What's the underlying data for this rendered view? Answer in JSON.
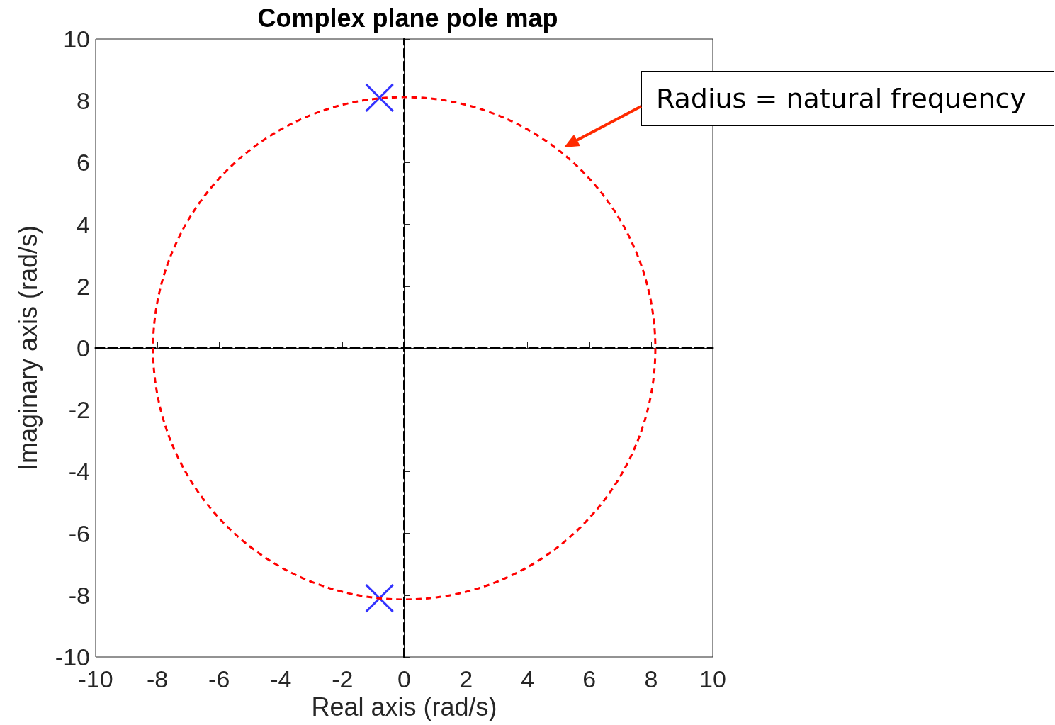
{
  "chart_data": {
    "type": "scatter",
    "title": "Complex plane pole map",
    "xlabel": "Real axis (rad/s)",
    "ylabel": "Imaginary axis (rad/s)",
    "xlim": [
      -10,
      10
    ],
    "ylim": [
      -10,
      10
    ],
    "xticks": [
      -10,
      -8,
      -6,
      -4,
      -2,
      0,
      2,
      4,
      6,
      8,
      10
    ],
    "yticks": [
      -10,
      -8,
      -6,
      -4,
      -2,
      0,
      2,
      4,
      6,
      8,
      10
    ],
    "series": [
      {
        "color": "#0000ff",
        "marker": "cross",
        "x": [
          -0.8,
          -0.8
        ],
        "values": [
          8.1,
          -8.1
        ]
      },
      {
        "type": "line",
        "color": "#000000",
        "line_style": "dashed",
        "marker": "none",
        "x": [
          -10,
          10
        ],
        "values": [
          0,
          0
        ]
      },
      {
        "type": "line",
        "color": "#000000",
        "line_style": "dashed",
        "marker": "none",
        "x": [
          0,
          0
        ],
        "values": [
          -10,
          10
        ]
      }
    ],
    "annotations": [
      "Radius = natural frequency"
    ]
  }
}
